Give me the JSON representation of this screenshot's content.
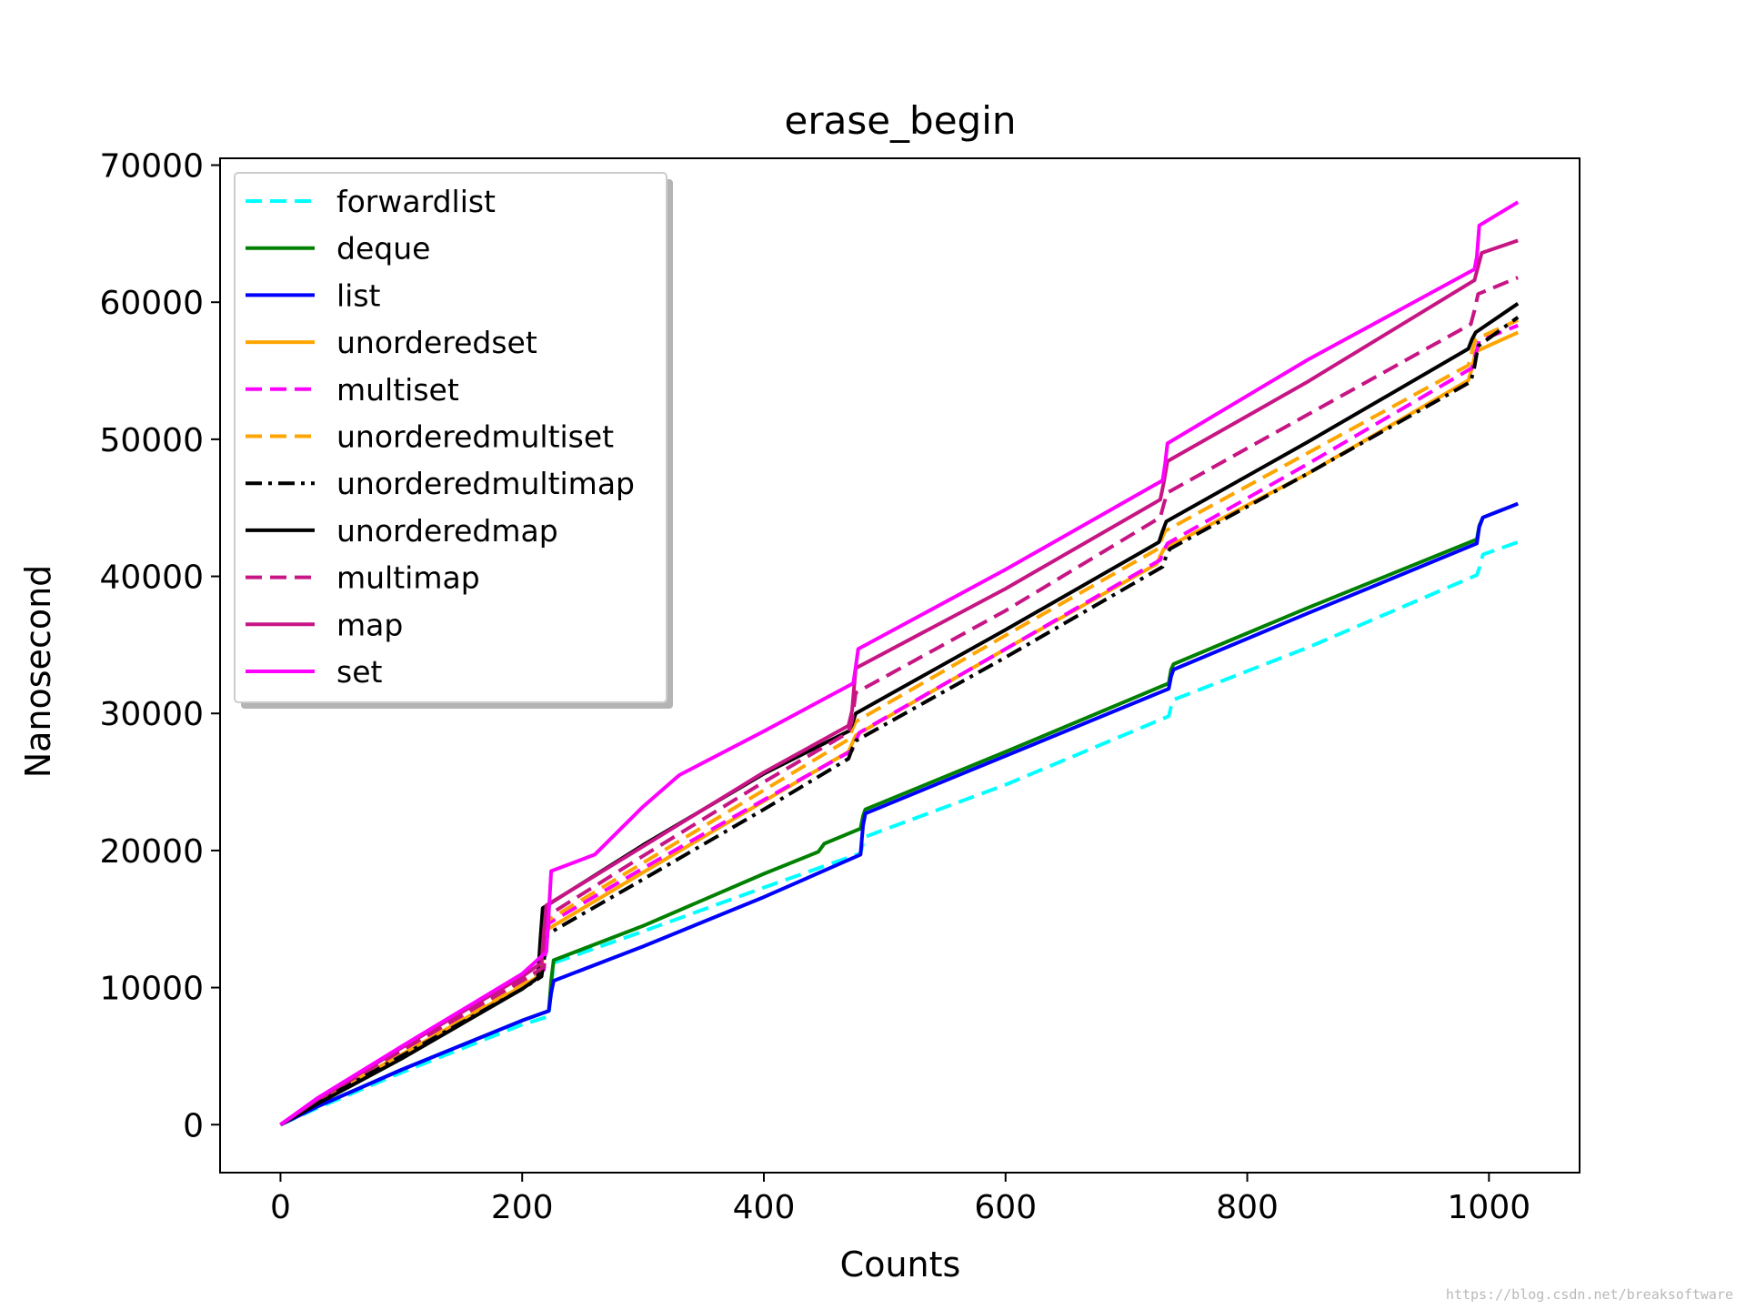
{
  "chart_data": {
    "type": "line",
    "title": "erase_begin",
    "xlabel": "Counts",
    "ylabel": "Nanosecond",
    "xlim": [
      -50,
      1075
    ],
    "ylim": [
      -3500,
      70500
    ],
    "xticks": [
      0,
      200,
      400,
      600,
      800,
      1000
    ],
    "yticks": [
      0,
      10000,
      20000,
      30000,
      40000,
      50000,
      60000,
      70000
    ],
    "xtick_labels": [
      "0",
      "200",
      "400",
      "600",
      "800",
      "1000"
    ],
    "ytick_labels": [
      "0",
      "10000",
      "20000",
      "30000",
      "40000",
      "50000",
      "60000",
      "70000"
    ],
    "grid": false,
    "legend_position": "upper-left",
    "series": [
      {
        "name": "forwardlist",
        "color": "#00ffff",
        "style": "dashed",
        "x": [
          0,
          30,
          100,
          200,
          222,
          224,
          226,
          300,
          400,
          480,
          482,
          484,
          600,
          735,
          737,
          739,
          850,
          990,
          992,
          995,
          1024
        ],
        "y": [
          0,
          1200,
          3800,
          7300,
          7900,
          10000,
          11800,
          14100,
          17300,
          19800,
          20500,
          21000,
          24800,
          29800,
          30500,
          31000,
          34800,
          40100,
          40600,
          41600,
          42500
        ]
      },
      {
        "name": "deque",
        "color": "#008000",
        "style": "solid",
        "x": [
          0,
          30,
          100,
          200,
          222,
          224,
          226,
          300,
          400,
          445,
          450,
          480,
          482,
          484,
          600,
          735,
          737,
          739,
          850,
          990,
          992,
          995,
          1024
        ],
        "y": [
          0,
          1300,
          4000,
          7600,
          8300,
          10500,
          12000,
          14500,
          18300,
          19900,
          20500,
          21600,
          22500,
          23000,
          27200,
          32200,
          33200,
          33600,
          37700,
          42700,
          43700,
          44300,
          45300
        ]
      },
      {
        "name": "list",
        "color": "#0000ff",
        "style": "solid",
        "x": [
          0,
          30,
          100,
          200,
          222,
          224,
          226,
          300,
          400,
          480,
          482,
          484,
          600,
          735,
          737,
          739,
          850,
          990,
          992,
          995,
          1024
        ],
        "y": [
          0,
          1300,
          4000,
          7600,
          8300,
          9600,
          10500,
          13000,
          16600,
          19700,
          21800,
          22700,
          26900,
          31800,
          32700,
          33200,
          37300,
          42400,
          43600,
          44300,
          45300
        ]
      },
      {
        "name": "unorderedset",
        "color": "#ffa500",
        "style": "solid",
        "x": [
          0,
          30,
          100,
          200,
          215,
          218,
          220,
          300,
          400,
          470,
          473,
          476,
          600,
          725,
          728,
          731,
          850,
          983,
          986,
          989,
          1024
        ],
        "y": [
          0,
          1700,
          5100,
          10100,
          10900,
          12800,
          14200,
          18400,
          23600,
          27200,
          27800,
          28400,
          34700,
          40900,
          41500,
          42000,
          47500,
          54300,
          55200,
          56400,
          57800
        ]
      },
      {
        "name": "multiset",
        "color": "#ff00ff",
        "style": "dashed",
        "x": [
          0,
          30,
          100,
          200,
          218,
          220,
          222,
          300,
          400,
          473,
          476,
          479,
          600,
          728,
          731,
          734,
          850,
          986,
          989,
          992,
          1024
        ],
        "y": [
          0,
          1800,
          5500,
          10600,
          11300,
          13300,
          14700,
          18700,
          23700,
          27300,
          28000,
          28600,
          34700,
          41200,
          41900,
          42400,
          48200,
          55200,
          56200,
          57200,
          58300
        ]
      },
      {
        "name": "unorderedmultiset",
        "color": "#ffa500",
        "style": "dashed",
        "x": [
          0,
          30,
          100,
          200,
          216,
          219,
          221,
          300,
          400,
          470,
          473,
          476,
          600,
          726,
          729,
          732,
          850,
          983,
          986,
          989,
          1024
        ],
        "y": [
          0,
          1700,
          5200,
          10400,
          11200,
          13300,
          14900,
          19100,
          24400,
          28100,
          28800,
          29400,
          35700,
          42000,
          42700,
          43300,
          49000,
          55400,
          56400,
          57300,
          58700
        ]
      },
      {
        "name": "unorderedmultimap",
        "color": "#000000",
        "style": "dashdot",
        "x": [
          0,
          30,
          100,
          200,
          216,
          219,
          221,
          300,
          400,
          470,
          473,
          476,
          600,
          730,
          733,
          736,
          850,
          985,
          988,
          991,
          1024
        ],
        "y": [
          0,
          1600,
          5000,
          9900,
          10800,
          12600,
          13900,
          17900,
          23000,
          26700,
          27400,
          28000,
          34100,
          40700,
          41500,
          42000,
          47500,
          54200,
          55300,
          56800,
          58900
        ]
      },
      {
        "name": "unorderedmap",
        "color": "#000000",
        "style": "solid",
        "x": [
          0,
          30,
          100,
          200,
          213,
          215,
          217,
          300,
          400,
          470,
          473,
          476,
          600,
          727,
          730,
          733,
          850,
          983,
          986,
          989,
          1024
        ],
        "y": [
          0,
          1500,
          4800,
          9900,
          10700,
          13500,
          15800,
          20400,
          25600,
          28700,
          29200,
          30000,
          36100,
          42500,
          43300,
          44000,
          49800,
          56600,
          57300,
          57800,
          59900
        ]
      },
      {
        "name": "multimap",
        "color": "#c71585",
        "style": "dashed",
        "x": [
          0,
          30,
          100,
          200,
          218,
          220,
          222,
          300,
          400,
          470,
          473,
          476,
          600,
          728,
          731,
          734,
          850,
          985,
          988,
          991,
          1024
        ],
        "y": [
          0,
          1800,
          5400,
          10500,
          11500,
          13400,
          15300,
          19600,
          25000,
          28600,
          29500,
          31500,
          37500,
          44300,
          45300,
          46100,
          51800,
          58400,
          59400,
          60600,
          61800
        ]
      },
      {
        "name": "map",
        "color": "#c71585",
        "style": "solid",
        "x": [
          0,
          30,
          100,
          200,
          216,
          218,
          220,
          300,
          400,
          470,
          473,
          476,
          600,
          728,
          731,
          734,
          850,
          988,
          991,
          994,
          1024
        ],
        "y": [
          0,
          1800,
          5600,
          10800,
          11800,
          14100,
          16000,
          20300,
          25700,
          29100,
          30200,
          33300,
          39100,
          45600,
          46900,
          48400,
          54200,
          61600,
          62600,
          63600,
          64500
        ]
      },
      {
        "name": "set",
        "color": "#ff00ff",
        "style": "solid",
        "x": [
          0,
          30,
          100,
          200,
          220,
          222,
          224,
          260,
          300,
          330,
          400,
          474,
          476,
          478,
          600,
          730,
          732,
          734,
          850,
          988,
          990,
          992,
          1024
        ],
        "y": [
          0,
          1900,
          5700,
          11000,
          12600,
          15500,
          18500,
          19700,
          23200,
          25500,
          28700,
          32200,
          33400,
          34700,
          40500,
          47000,
          48200,
          49700,
          55800,
          62400,
          63300,
          65600,
          67300
        ]
      }
    ]
  },
  "watermark": "https://blog.csdn.net/breaksoftware"
}
